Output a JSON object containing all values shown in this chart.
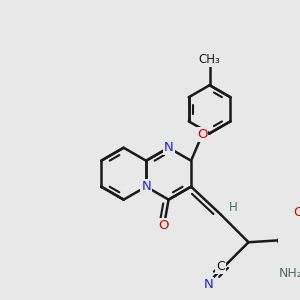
{
  "bg_color": "#e8e8e8",
  "bond_color": "#1a1a1a",
  "bond_width": 1.8,
  "atom_colors": {
    "N": "#2020ff",
    "O": "#dd0000",
    "C": "#1a1a1a",
    "H": "#507060",
    "NH2": "#507060"
  },
  "font_size_N": 9.5,
  "font_size_O": 9.5,
  "font_size_C": 9.0,
  "font_size_H": 8.5,
  "font_size_NH2": 9.0,
  "font_size_CH3": 8.5
}
